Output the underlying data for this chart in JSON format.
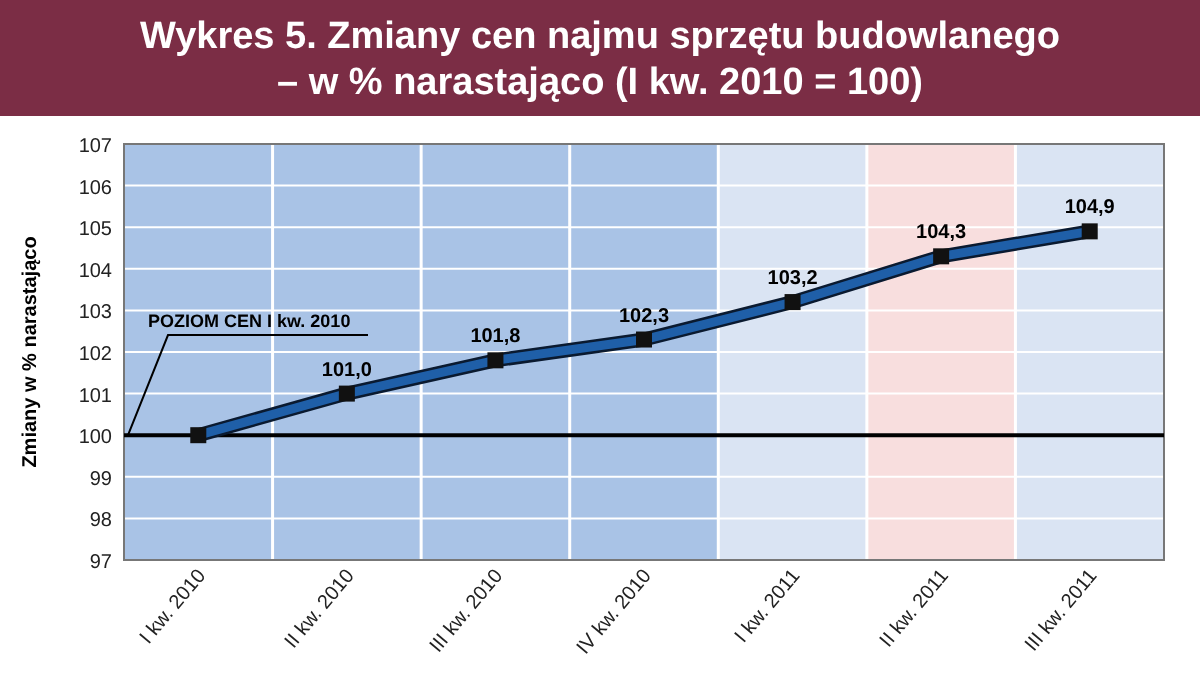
{
  "chart_data": {
    "type": "line",
    "title": "Wykres 5. Zmiany cen najmu sprzętu budowlanego\n– w % narastająco (I kw. 2010 = 100)",
    "ylabel": "Zmiany w % narastająco",
    "categories": [
      "I kw. 2010",
      "II kw. 2010",
      "III kw. 2010",
      "IV kw. 2010",
      "I kw. 2011",
      "II kw. 2011",
      "III kw. 2011"
    ],
    "series": [
      {
        "color": "#1f5fa8",
        "values": [
          100,
          101.0,
          101.8,
          102.3,
          103.2,
          104.3,
          104.9
        ]
      }
    ],
    "value_labels": [
      null,
      "101,0",
      "101,8",
      "102,3",
      "103,2",
      "104,3",
      "104,9"
    ],
    "ylim": [
      97,
      107
    ],
    "yticks": [
      97,
      98,
      99,
      100,
      101,
      102,
      103,
      104,
      105,
      106,
      107
    ],
    "grid": "y",
    "marker": "square",
    "line_style": "solid",
    "ref_lines": [
      {
        "axis": "y",
        "value": 100,
        "label": "POZIOM CEN I kw. 2010",
        "color": "#000000"
      }
    ],
    "bands": [
      {
        "axis": "x",
        "from": "I kw. 2010",
        "to": "IV kw. 2010",
        "color": "#a9c3e6"
      },
      {
        "axis": "x",
        "from": "I kw. 2011",
        "to": "III kw. 2011",
        "color": "#dae4f3"
      },
      {
        "axis": "x",
        "from": "II kw. 2011",
        "to": "II kw. 2011",
        "color": "#f8dede"
      }
    ]
  }
}
